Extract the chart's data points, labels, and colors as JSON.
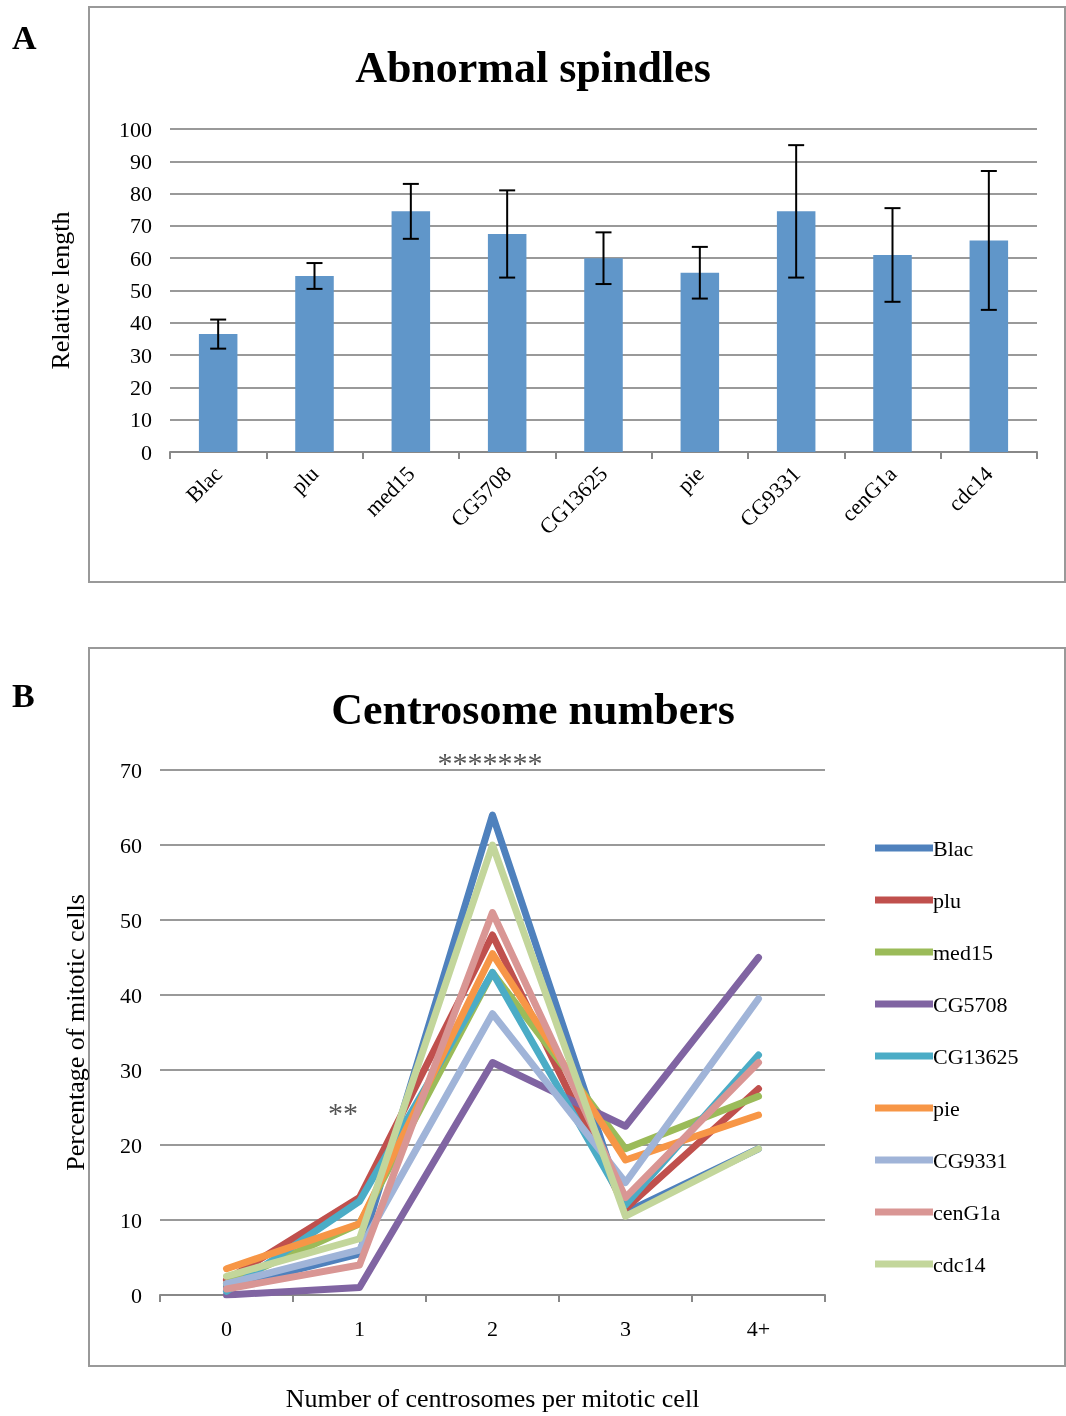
{
  "chart_data": [
    {
      "type": "bar",
      "title": "Abnormal spindles",
      "ylabel": "Relative length",
      "annotations": [
        "A"
      ],
      "categories": [
        "Blac",
        "plu",
        "med15",
        "CG5708",
        "CG13625",
        "pie",
        "CG9331",
        "cenG1a",
        "cdc14"
      ],
      "values": [
        36.5,
        54.5,
        74.5,
        67.5,
        60,
        55.5,
        74.5,
        61,
        65.5
      ],
      "errors": [
        4.5,
        4,
        8.5,
        13.5,
        8,
        8,
        20.5,
        14.5,
        21.5
      ],
      "color": "#6096c9",
      "ylim": [
        0,
        100
      ],
      "yticks": [
        0,
        10,
        20,
        30,
        40,
        50,
        60,
        70,
        80,
        90,
        100
      ],
      "grid": "y"
    },
    {
      "type": "line",
      "title": "Centrosome numbers",
      "xlabel": "Number of centrosomes per mitotic cell",
      "ylabel": "Percentage of mitotic cells",
      "annotations": [
        "B",
        "**",
        "*******"
      ],
      "categories": [
        "0",
        "1",
        "2",
        "3",
        "4+"
      ],
      "series": [
        {
          "name": "Blac",
          "color": "#4f81bd",
          "values": [
            1,
            5.5,
            64,
            11,
            19.5
          ]
        },
        {
          "name": "plu",
          "color": "#c0504d",
          "values": [
            2,
            13,
            48,
            11.5,
            27.5
          ]
        },
        {
          "name": "med15",
          "color": "#9bbb59",
          "values": [
            1.5,
            9.5,
            43,
            19.5,
            26.5
          ]
        },
        {
          "name": "CG5708",
          "color": "#8064a2",
          "values": [
            0,
            1,
            31,
            22.5,
            45
          ]
        },
        {
          "name": "CG13625",
          "color": "#4bacc6",
          "values": [
            0.5,
            12.5,
            43,
            12,
            32
          ]
        },
        {
          "name": "pie",
          "color": "#f79646",
          "values": [
            3.5,
            9.5,
            45.5,
            18,
            24
          ]
        },
        {
          "name": "CG9331",
          "color": "#a0b4d8",
          "values": [
            1.5,
            6,
            37.5,
            15,
            39.5
          ]
        },
        {
          "name": "cenG1a",
          "color": "#d99694",
          "values": [
            0.8,
            4,
            51,
            13,
            31
          ]
        },
        {
          "name": "cdc14",
          "color": "#c3d69b",
          "values": [
            2.5,
            7.5,
            60,
            10.5,
            19.5
          ]
        }
      ],
      "ylim": [
        0,
        70
      ],
      "yticks": [
        0,
        10,
        20,
        30,
        40,
        50,
        60,
        70
      ],
      "grid": "y",
      "legend": "right",
      "marker": "none",
      "line_style": "solid"
    }
  ]
}
